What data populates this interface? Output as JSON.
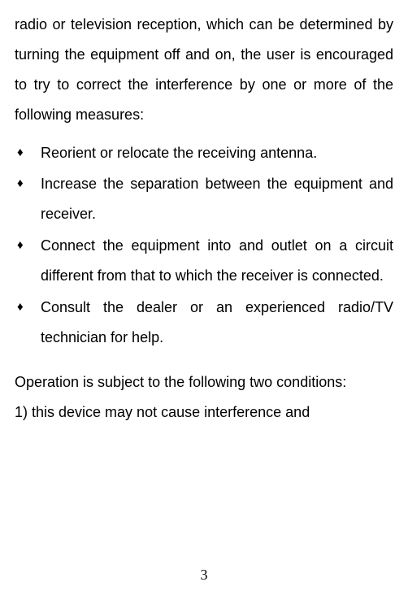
{
  "page": {
    "background_color": "#ffffff",
    "text_color": "#000000",
    "body_fontsize": 18,
    "line_height": 2.05,
    "font_family": "Arial, sans-serif"
  },
  "intro": "radio or television reception, which can be determined by turning the equipment off and on, the user is encouraged to try to correct the interference by one or more of the following measures:",
  "bullets": {
    "marker": "♦",
    "items": [
      "Reorient or relocate the receiving antenna.",
      "Increase the separation between the equipment and receiver.",
      "Connect the equipment into and outlet on a circuit different from that to which the receiver is connected.",
      "Consult the dealer or an experienced radio/TV technician for help."
    ]
  },
  "conditions": {
    "header": "Operation is subject to the following two conditions:",
    "item1": "1) this device may not cause interference and"
  },
  "page_number": "3"
}
